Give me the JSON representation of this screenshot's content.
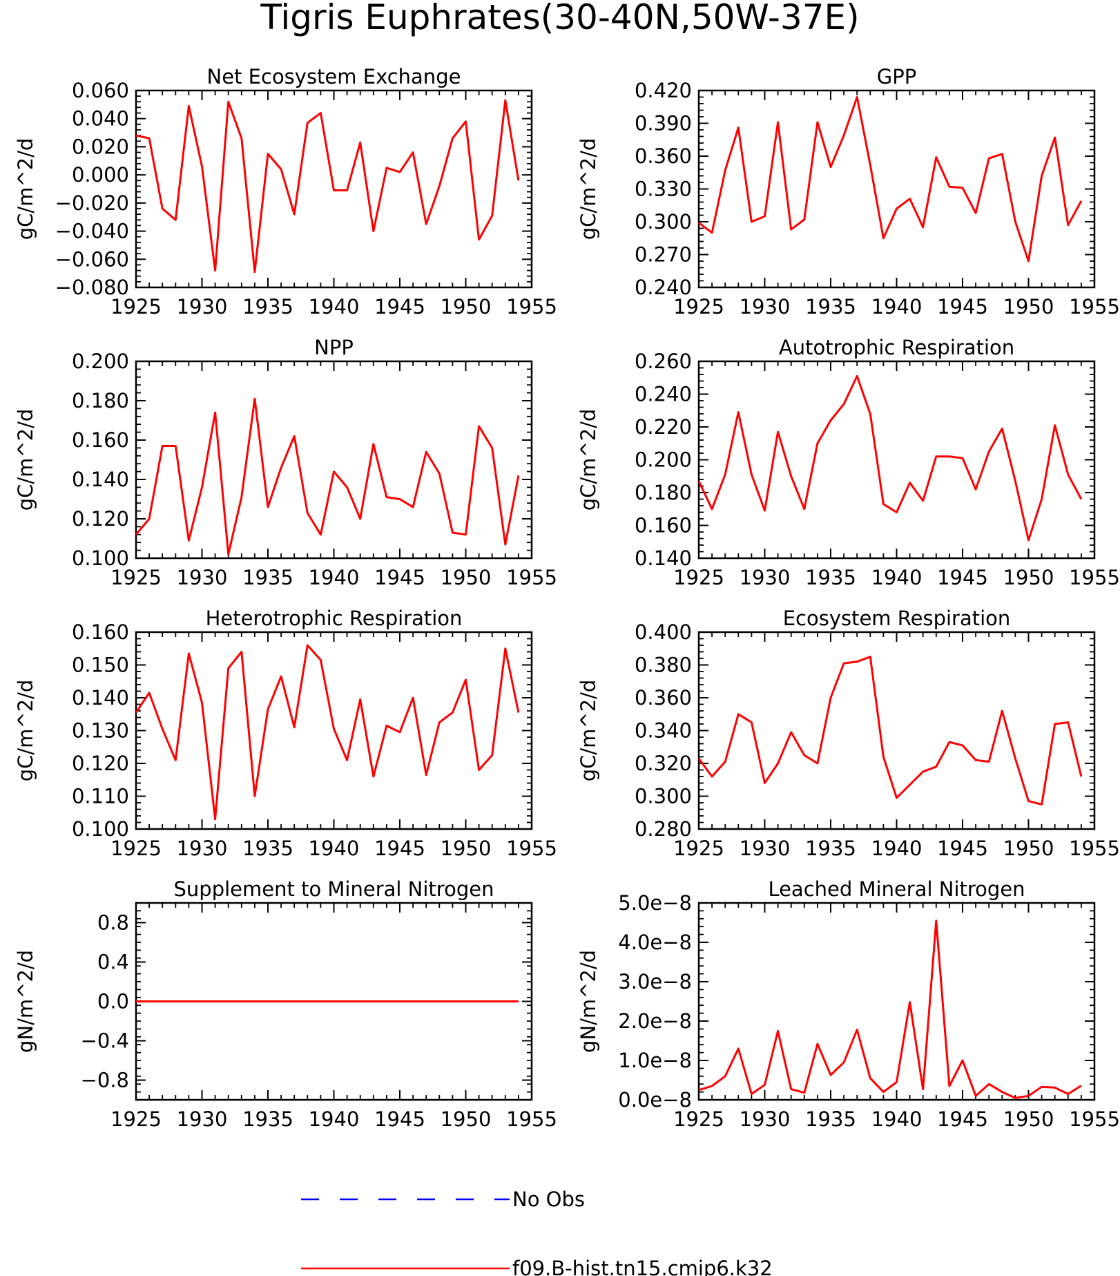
{
  "figure": {
    "title": "Tigris Euphrates(30-40N,50W-37E)",
    "colors": {
      "model": "#ff0000",
      "obs": "#0000ff",
      "axis": "#000000"
    }
  },
  "legend": {
    "entries": [
      {
        "label": "No Obs",
        "style": "dashed",
        "color": "#0000ff"
      },
      {
        "label": "f09.B-hist.tn15.cmip6.k32",
        "style": "solid",
        "color": "#ff0000"
      }
    ]
  },
  "chart_data": [
    {
      "type": "line",
      "title": "Net Ecosystem Exchange",
      "xlabel": "",
      "ylabel": "gC/m^2/d",
      "xlim": [
        1925,
        1955
      ],
      "ylim": [
        -0.08,
        0.06
      ],
      "xticks": [
        1925,
        1930,
        1935,
        1940,
        1945,
        1950,
        1955
      ],
      "xtick_labels": [
        "1925",
        "1930",
        "1935",
        "1940",
        "1945",
        "1950",
        "1955"
      ],
      "yticks": [
        -0.08,
        -0.06,
        -0.04,
        -0.02,
        0.0,
        0.02,
        0.04,
        0.06
      ],
      "ytick_labels": [
        "-0.080",
        "-0.060",
        "-0.040",
        "-0.020",
        "0.000",
        "0.020",
        "0.040",
        "0.060"
      ],
      "series": [
        {
          "color": "#ff0000",
          "x": [
            1925,
            1926,
            1927,
            1928,
            1929,
            1930,
            1931,
            1932,
            1933,
            1934,
            1935,
            1936,
            1937,
            1938,
            1939,
            1940,
            1941,
            1942,
            1943,
            1944,
            1945,
            1946,
            1947,
            1948,
            1949,
            1950,
            1951,
            1952,
            1953,
            1954
          ],
          "y": [
            0.028,
            0.026,
            -0.024,
            -0.032,
            0.049,
            0.006,
            -0.068,
            0.052,
            0.026,
            -0.069,
            0.015,
            0.004,
            -0.028,
            0.037,
            0.044,
            -0.011,
            -0.011,
            0.023,
            -0.04,
            0.005,
            0.002,
            0.016,
            -0.035,
            -0.008,
            0.026,
            0.038,
            -0.046,
            -0.029,
            0.053,
            -0.004
          ]
        }
      ]
    },
    {
      "type": "line",
      "title": "GPP",
      "xlabel": "",
      "ylabel": "gC/m^2/d",
      "xlim": [
        1925,
        1955
      ],
      "ylim": [
        0.24,
        0.42
      ],
      "xticks": [
        1925,
        1930,
        1935,
        1940,
        1945,
        1950,
        1955
      ],
      "xtick_labels": [
        "1925",
        "1930",
        "1935",
        "1940",
        "1945",
        "1950",
        "1955"
      ],
      "yticks": [
        0.24,
        0.27,
        0.3,
        0.33,
        0.36,
        0.39,
        0.42
      ],
      "ytick_labels": [
        "0.240",
        "0.270",
        "0.300",
        "0.330",
        "0.360",
        "0.390",
        "0.420"
      ],
      "series": [
        {
          "color": "#ff0000",
          "x": [
            1925,
            1926,
            1927,
            1928,
            1929,
            1930,
            1931,
            1932,
            1933,
            1934,
            1935,
            1936,
            1937,
            1938,
            1939,
            1940,
            1941,
            1942,
            1943,
            1944,
            1945,
            1946,
            1947,
            1948,
            1949,
            1950,
            1951,
            1952,
            1953,
            1954
          ],
          "y": [
            0.299,
            0.29,
            0.347,
            0.386,
            0.3,
            0.305,
            0.391,
            0.293,
            0.302,
            0.391,
            0.35,
            0.379,
            0.414,
            0.352,
            0.285,
            0.312,
            0.321,
            0.295,
            0.359,
            0.332,
            0.331,
            0.308,
            0.358,
            0.362,
            0.3,
            0.264,
            0.342,
            0.377,
            0.297,
            0.319
          ]
        }
      ]
    },
    {
      "type": "line",
      "title": "NPP",
      "xlabel": "",
      "ylabel": "gC/m^2/d",
      "xlim": [
        1925,
        1955
      ],
      "ylim": [
        0.1,
        0.2
      ],
      "xticks": [
        1925,
        1930,
        1935,
        1940,
        1945,
        1950,
        1955
      ],
      "xtick_labels": [
        "1925",
        "1930",
        "1935",
        "1940",
        "1945",
        "1950",
        "1955"
      ],
      "yticks": [
        0.1,
        0.12,
        0.14,
        0.16,
        0.18,
        0.2
      ],
      "ytick_labels": [
        "0.100",
        "0.120",
        "0.140",
        "0.160",
        "0.180",
        "0.200"
      ],
      "series": [
        {
          "color": "#ff0000",
          "x": [
            1925,
            1926,
            1927,
            1928,
            1929,
            1930,
            1931,
            1932,
            1933,
            1934,
            1935,
            1936,
            1937,
            1938,
            1939,
            1940,
            1941,
            1942,
            1943,
            1944,
            1945,
            1946,
            1947,
            1948,
            1949,
            1950,
            1951,
            1952,
            1953,
            1954
          ],
          "y": [
            0.112,
            0.12,
            0.157,
            0.157,
            0.109,
            0.136,
            0.174,
            0.102,
            0.131,
            0.181,
            0.126,
            0.146,
            0.162,
            0.123,
            0.112,
            0.144,
            0.136,
            0.12,
            0.158,
            0.131,
            0.13,
            0.126,
            0.154,
            0.143,
            0.113,
            0.112,
            0.167,
            0.156,
            0.107,
            0.142
          ]
        }
      ]
    },
    {
      "type": "line",
      "title": "Autotrophic Respiration",
      "xlabel": "",
      "ylabel": "gC/m^2/d",
      "xlim": [
        1925,
        1955
      ],
      "ylim": [
        0.14,
        0.26
      ],
      "xticks": [
        1925,
        1930,
        1935,
        1940,
        1945,
        1950,
        1955
      ],
      "xtick_labels": [
        "1925",
        "1930",
        "1935",
        "1940",
        "1945",
        "1950",
        "1955"
      ],
      "yticks": [
        0.14,
        0.16,
        0.18,
        0.2,
        0.22,
        0.24,
        0.26
      ],
      "ytick_labels": [
        "0.140",
        "0.160",
        "0.180",
        "0.200",
        "0.220",
        "0.240",
        "0.260"
      ],
      "series": [
        {
          "color": "#ff0000",
          "x": [
            1925,
            1926,
            1927,
            1928,
            1929,
            1930,
            1931,
            1932,
            1933,
            1934,
            1935,
            1936,
            1937,
            1938,
            1939,
            1940,
            1941,
            1942,
            1943,
            1944,
            1945,
            1946,
            1947,
            1948,
            1949,
            1950,
            1951,
            1952,
            1953,
            1954
          ],
          "y": [
            0.187,
            0.17,
            0.191,
            0.229,
            0.191,
            0.169,
            0.217,
            0.19,
            0.17,
            0.21,
            0.224,
            0.234,
            0.251,
            0.228,
            0.173,
            0.168,
            0.186,
            0.175,
            0.202,
            0.202,
            0.201,
            0.182,
            0.205,
            0.219,
            0.187,
            0.151,
            0.176,
            0.221,
            0.191,
            0.176
          ]
        }
      ]
    },
    {
      "type": "line",
      "title": "Heterotrophic Respiration",
      "xlabel": "",
      "ylabel": "gC/m^2/d",
      "xlim": [
        1925,
        1955
      ],
      "ylim": [
        0.1,
        0.16
      ],
      "xticks": [
        1925,
        1930,
        1935,
        1940,
        1945,
        1950,
        1955
      ],
      "xtick_labels": [
        "1925",
        "1930",
        "1935",
        "1940",
        "1945",
        "1950",
        "1955"
      ],
      "yticks": [
        0.1,
        0.11,
        0.12,
        0.13,
        0.14,
        0.15,
        0.16
      ],
      "ytick_labels": [
        "0.100",
        "0.110",
        "0.120",
        "0.130",
        "0.140",
        "0.150",
        "0.160"
      ],
      "series": [
        {
          "color": "#ff0000",
          "x": [
            1925,
            1926,
            1927,
            1928,
            1929,
            1930,
            1931,
            1932,
            1933,
            1934,
            1935,
            1936,
            1937,
            1938,
            1939,
            1940,
            1941,
            1942,
            1943,
            1944,
            1945,
            1946,
            1947,
            1948,
            1949,
            1950,
            1951,
            1952,
            1953,
            1954
          ],
          "y": [
            0.1355,
            0.1415,
            0.1305,
            0.121,
            0.1535,
            0.1385,
            0.103,
            0.149,
            0.154,
            0.11,
            0.1365,
            0.1465,
            0.131,
            0.156,
            0.1515,
            0.1305,
            0.121,
            0.1395,
            0.116,
            0.1315,
            0.1295,
            0.14,
            0.1165,
            0.1325,
            0.1355,
            0.1455,
            0.118,
            0.1225,
            0.155,
            0.1355
          ]
        }
      ]
    },
    {
      "type": "line",
      "title": "Ecosystem Respiration",
      "xlabel": "",
      "ylabel": "gC/m^2/d",
      "xlim": [
        1925,
        1955
      ],
      "ylim": [
        0.28,
        0.4
      ],
      "xticks": [
        1925,
        1930,
        1935,
        1940,
        1945,
        1950,
        1955
      ],
      "xtick_labels": [
        "1925",
        "1930",
        "1935",
        "1940",
        "1945",
        "1950",
        "1955"
      ],
      "yticks": [
        0.28,
        0.3,
        0.32,
        0.34,
        0.36,
        0.38,
        0.4
      ],
      "ytick_labels": [
        "0.280",
        "0.300",
        "0.320",
        "0.340",
        "0.360",
        "0.380",
        "0.400"
      ],
      "series": [
        {
          "color": "#ff0000",
          "x": [
            1925,
            1926,
            1927,
            1928,
            1929,
            1930,
            1931,
            1932,
            1933,
            1934,
            1935,
            1936,
            1937,
            1938,
            1939,
            1940,
            1941,
            1942,
            1943,
            1944,
            1945,
            1946,
            1947,
            1948,
            1949,
            1950,
            1951,
            1952,
            1953,
            1954
          ],
          "y": [
            0.323,
            0.312,
            0.321,
            0.35,
            0.345,
            0.308,
            0.32,
            0.339,
            0.325,
            0.32,
            0.36,
            0.381,
            0.382,
            0.385,
            0.324,
            0.299,
            0.307,
            0.315,
            0.318,
            0.333,
            0.331,
            0.322,
            0.321,
            0.352,
            0.323,
            0.297,
            0.295,
            0.344,
            0.345,
            0.312
          ]
        }
      ]
    },
    {
      "type": "line",
      "title": "Supplement to Mineral Nitrogen",
      "xlabel": "",
      "ylabel": "gN/m^2/d",
      "xlim": [
        1925,
        1955
      ],
      "ylim": [
        -1.0,
        1.0
      ],
      "xticks": [
        1925,
        1930,
        1935,
        1940,
        1945,
        1950,
        1955
      ],
      "xtick_labels": [
        "1925",
        "1930",
        "1935",
        "1940",
        "1945",
        "1950",
        "1955"
      ],
      "yticks": [
        -0.8,
        -0.4,
        0.0,
        0.4,
        0.8
      ],
      "ytick_labels": [
        "-0.8",
        "-0.4",
        "0.0",
        "0.4",
        "0.8"
      ],
      "series": [
        {
          "color": "#ff0000",
          "x": [
            1925,
            1926,
            1927,
            1928,
            1929,
            1930,
            1931,
            1932,
            1933,
            1934,
            1935,
            1936,
            1937,
            1938,
            1939,
            1940,
            1941,
            1942,
            1943,
            1944,
            1945,
            1946,
            1947,
            1948,
            1949,
            1950,
            1951,
            1952,
            1953,
            1954
          ],
          "y": [
            0,
            0,
            0,
            0,
            0,
            0,
            0,
            0,
            0,
            0,
            0,
            0,
            0,
            0,
            0,
            0,
            0,
            0,
            0,
            0,
            0,
            0,
            0,
            0,
            0,
            0,
            0,
            0,
            0,
            0
          ]
        }
      ]
    },
    {
      "type": "line",
      "title": "Leached Mineral Nitrogen",
      "xlabel": "",
      "ylabel": "gN/m^2/d",
      "xlim": [
        1925,
        1955
      ],
      "ylim": [
        0.0,
        5e-08
      ],
      "xticks": [
        1925,
        1930,
        1935,
        1940,
        1945,
        1950,
        1955
      ],
      "xtick_labels": [
        "1925",
        "1930",
        "1935",
        "1940",
        "1945",
        "1950",
        "1955"
      ],
      "yticks": [
        0.0,
        1e-08,
        2e-08,
        3e-08,
        4e-08,
        5e-08
      ],
      "ytick_labels": [
        "0.0e-8",
        "1.0e-8",
        "2.0e-8",
        "3.0e-8",
        "4.0e-8",
        "5.0e-8"
      ],
      "series": [
        {
          "color": "#ff0000",
          "x": [
            1925,
            1926,
            1927,
            1928,
            1929,
            1930,
            1931,
            1932,
            1933,
            1934,
            1935,
            1936,
            1937,
            1938,
            1939,
            1940,
            1941,
            1942,
            1943,
            1944,
            1945,
            1946,
            1947,
            1948,
            1949,
            1950,
            1951,
            1952,
            1953,
            1954
          ],
          "y": [
            2.5e-09,
            3.5e-09,
            6e-09,
            1.3e-08,
            1.5e-09,
            3.8e-09,
            1.75e-08,
            2.7e-09,
            1.8e-09,
            1.42e-08,
            6.3e-09,
            9.5e-09,
            1.78e-08,
            5.5e-09,
            2e-09,
            4.5e-09,
            2.48e-08,
            2.7e-09,
            4.55e-08,
            3.5e-09,
            1e-08,
            1e-09,
            4e-09,
            2e-09,
            5e-10,
            1e-09,
            3.3e-09,
            3.1e-09,
            1.5e-09,
            3.6e-09
          ]
        }
      ]
    }
  ]
}
